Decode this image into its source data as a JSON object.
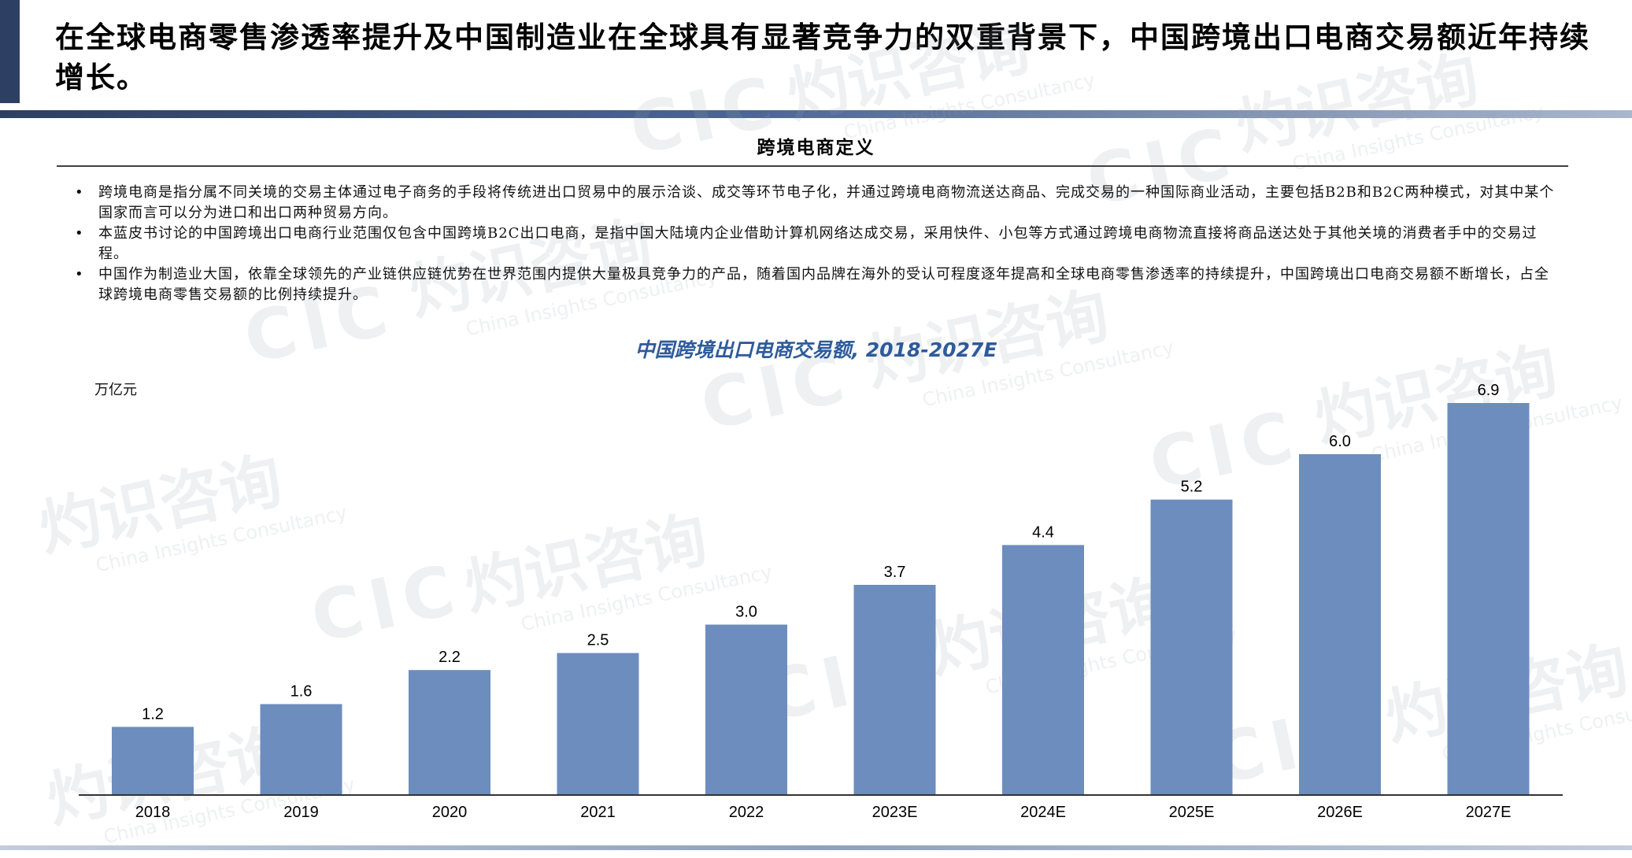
{
  "headline": "在全球电商零售渗透率提升及中国制造业在全球具有显著竞争力的双重背景下，中国跨境出口电商交易额近年持续增长。",
  "definition": {
    "title": "跨境电商定义",
    "bullets": [
      "跨境电商是指分属不同关境的交易主体通过电子商务的手段将传统进出口贸易中的展示洽谈、成交等环节电子化，并通过跨境电商物流送达商品、完成交易的一种国际商业活动，主要包括B2B和B2C两种模式，对其中某个国家而言可以分为进口和出口两种贸易方向。",
      "本蓝皮书讨论的中国跨境出口电商行业范围仅包含中国跨境B2C出口电商，是指中国大陆境内企业借助计算机网络达成交易，采用快件、小包等方式通过跨境电商物流直接将商品送达处于其他关境的消费者手中的交易过程。",
      "中国作为制造业大国，依靠全球领先的产业链供应链优势在世界范围内提供大量极具竞争力的产品，随着国内品牌在海外的受认可程度逐年提高和全球电商零售渗透率的持续提升，中国跨境出口电商交易额不断增长，占全球跨境电商零售交易额的比例持续提升。"
    ]
  },
  "watermark": {
    "cn": "灼识咨询",
    "en": "China Insights Consultancy",
    "logo": "CIC"
  },
  "chart_data": {
    "type": "bar",
    "title": "中国跨境出口电商交易额, 2018-2027E",
    "ylabel": "万亿元",
    "xlabel": "",
    "categories": [
      "2018",
      "2019",
      "2020",
      "2021",
      "2022",
      "2023E",
      "2024E",
      "2025E",
      "2026E",
      "2027E"
    ],
    "values": [
      1.2,
      1.6,
      2.2,
      2.5,
      3.0,
      3.7,
      4.4,
      5.2,
      6.0,
      6.9
    ],
    "value_labels": [
      "1.2",
      "1.6",
      "2.2",
      "2.5",
      "3.0",
      "3.7",
      "4.4",
      "5.2",
      "6.0",
      "6.9"
    ],
    "ylim": [
      0,
      6.9
    ],
    "grid": false,
    "legend": "none",
    "bar_color": "#6d8dbe"
  }
}
